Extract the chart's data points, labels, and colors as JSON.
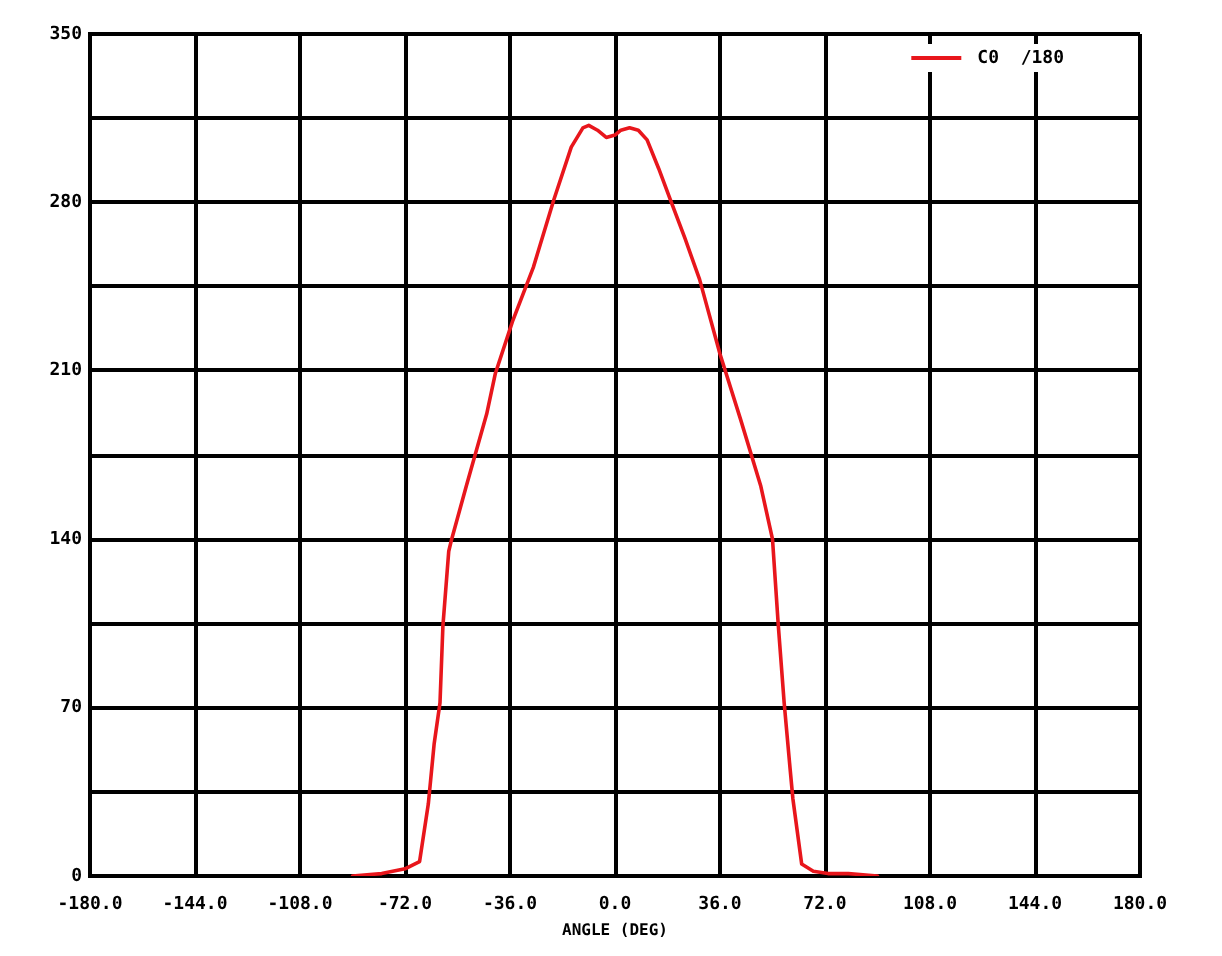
{
  "chart_data": {
    "type": "line",
    "xlabel": "ANGLE (DEG)",
    "x": [
      -90,
      -80,
      -72,
      -67,
      -64,
      -62,
      -60,
      -59,
      -57,
      -56,
      -51,
      -44,
      -41,
      -35,
      -28,
      -21,
      -15,
      -11,
      -9,
      -6,
      -3,
      0,
      2,
      5,
      8,
      11,
      15,
      19,
      24,
      29,
      36,
      43,
      50,
      54,
      56,
      58,
      60,
      61,
      64,
      68,
      73,
      80,
      90
    ],
    "series": [
      {
        "name": "C0  /180",
        "color": "#e8161c",
        "values": [
          0,
          1,
          3,
          6,
          30,
          55,
          72,
          104,
          135,
          140,
          162,
          192,
          209,
          231,
          253,
          281,
          303,
          311,
          312,
          310,
          307,
          308,
          310,
          311,
          310,
          306,
          294,
          281,
          265,
          248,
          217,
          190,
          162,
          140,
          104,
          72,
          45,
          32,
          5,
          2,
          1,
          1,
          0
        ]
      }
    ],
    "xlim": [
      -180,
      180
    ],
    "ylim": [
      0,
      350
    ],
    "xticks": [
      {
        "value": -180,
        "label": "-180.0"
      },
      {
        "value": -144,
        "label": "-144.0"
      },
      {
        "value": -108,
        "label": "-108.0"
      },
      {
        "value": -72,
        "label": "-72.0"
      },
      {
        "value": -36,
        "label": "-36.0"
      },
      {
        "value": 0,
        "label": "0.0"
      },
      {
        "value": 36,
        "label": "36.0"
      },
      {
        "value": 72,
        "label": "72.0"
      },
      {
        "value": 108,
        "label": "108.0"
      },
      {
        "value": 144,
        "label": "144.0"
      },
      {
        "value": 180,
        "label": "180.0"
      }
    ],
    "yticks": [
      0,
      {
        "value": 35,
        "label": null
      },
      70,
      {
        "value": 105,
        "label": null
      },
      140,
      {
        "value": 175,
        "label": null
      },
      210,
      {
        "value": 245,
        "label": null
      },
      280,
      {
        "value": 315,
        "label": null
      },
      350
    ],
    "grid": true,
    "legend": "top right"
  }
}
